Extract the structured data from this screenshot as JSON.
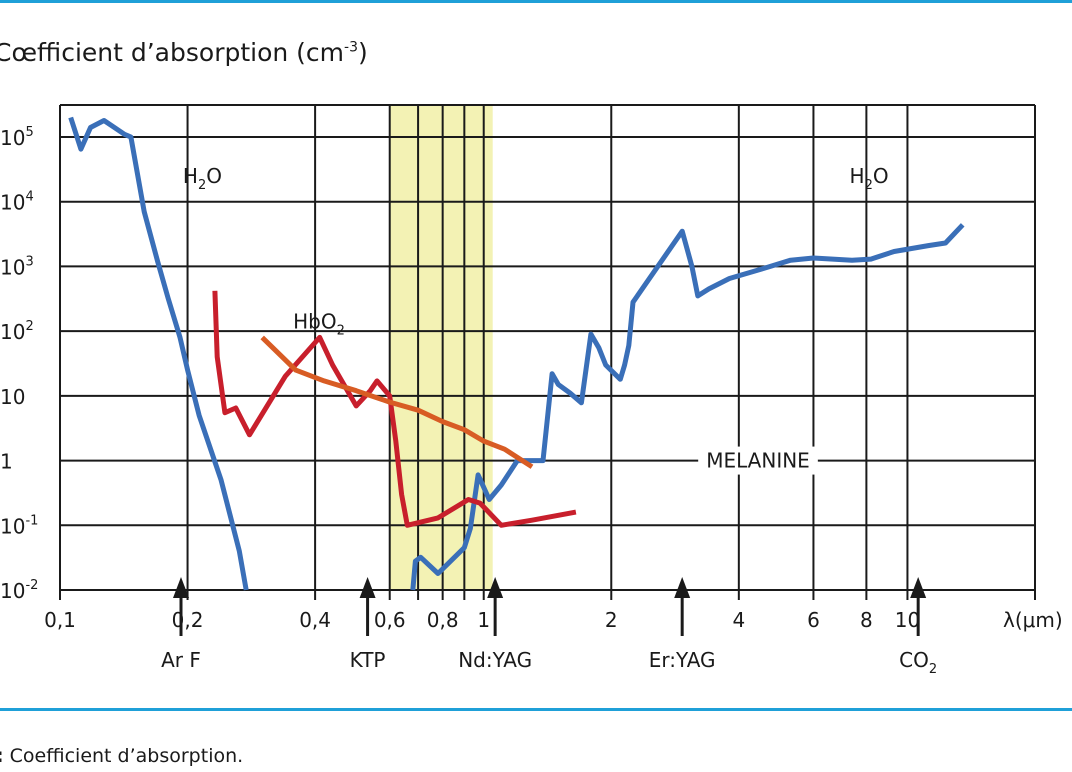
{
  "chart_data": {
    "type": "line",
    "title": "",
    "ylabel": {
      "prefix": "Cœfficient d’absorption (cm",
      "sup": "-3",
      "suffix": ")"
    },
    "xlabel": "λ(μm)",
    "x_scale": "log",
    "y_scale": "log",
    "xlim": [
      0.1,
      20
    ],
    "ylim": [
      0.01,
      200000
    ],
    "grid": true,
    "x_ticks": [
      {
        "value": 0.1,
        "label": "0,1"
      },
      {
        "value": 0.2,
        "label": "0,2"
      },
      {
        "value": 0.4,
        "label": "0,4"
      },
      {
        "value": 0.6,
        "label": "0,6"
      },
      {
        "value": 0.8,
        "label": "0,8"
      },
      {
        "value": 1,
        "label": "1"
      },
      {
        "value": 2,
        "label": "2"
      },
      {
        "value": 4,
        "label": "4"
      },
      {
        "value": 6,
        "label": "6"
      },
      {
        "value": 8,
        "label": "8"
      },
      {
        "value": 10,
        "label": "10"
      }
    ],
    "x_grid_extra": [
      0.7,
      0.9,
      20
    ],
    "y_ticks": [
      {
        "value": 100000,
        "base": "10",
        "exp": "5"
      },
      {
        "value": 10000,
        "base": "10",
        "exp": "4"
      },
      {
        "value": 1000,
        "base": "10",
        "exp": "3"
      },
      {
        "value": 100,
        "base": "10",
        "exp": "2"
      },
      {
        "value": 10,
        "base": "10",
        "exp": ""
      },
      {
        "value": 1,
        "base": "1",
        "exp": ""
      },
      {
        "value": 0.1,
        "base": "10",
        "exp": "-1"
      },
      {
        "value": 0.01,
        "base": "10",
        "exp": "-2"
      }
    ],
    "band": {
      "x0": 0.6,
      "x1": 1.05,
      "color": "#f3f2b4"
    },
    "lasers": [
      {
        "name": "Ar F",
        "sub": "",
        "x": 0.193
      },
      {
        "name": "KTP",
        "sub": "",
        "x": 0.532
      },
      {
        "name": "Nd:YAG",
        "sub": "",
        "x": 1.064
      },
      {
        "name": "Er:YAG",
        "sub": "",
        "x": 2.94
      },
      {
        "name": "CO",
        "sub": "2",
        "x": 10.6
      }
    ],
    "labels": [
      {
        "text": "H",
        "sub": "2",
        "suffix": "O",
        "x": 0.195,
        "y": 25000
      },
      {
        "text": "H",
        "sub": "2",
        "suffix": "O",
        "x": 7.3,
        "y": 25000
      },
      {
        "text": "HbO",
        "sub": "2",
        "suffix": "",
        "x": 0.355,
        "y": 140
      },
      {
        "text": "MELANINE",
        "sub": "",
        "suffix": "",
        "x": 3.35,
        "y": 1
      }
    ],
    "series": [
      {
        "key": "water",
        "color": "#3a6fb8",
        "points": [
          [
            0.106,
            200000
          ],
          [
            0.112,
            65000
          ],
          [
            0.118,
            140000
          ],
          [
            0.127,
            180000
          ],
          [
            0.142,
            110000
          ],
          [
            0.147,
            100000
          ],
          [
            0.158,
            7000
          ],
          [
            0.17,
            1200
          ],
          [
            0.18,
            320
          ],
          [
            0.192,
            80
          ],
          [
            0.2,
            25
          ],
          [
            0.213,
            5
          ],
          [
            0.24,
            0.5
          ],
          [
            0.265,
            0.04
          ],
          [
            0.275,
            0.01
          ]
        ]
      },
      {
        "key": "water_ir",
        "color": "#3a6fb8",
        "points": [
          [
            0.68,
            0.01
          ],
          [
            0.69,
            0.028
          ],
          [
            0.71,
            0.032
          ],
          [
            0.78,
            0.018
          ],
          [
            0.9,
            0.045
          ],
          [
            0.93,
            0.09
          ],
          [
            0.97,
            0.6
          ],
          [
            1.03,
            0.25
          ],
          [
            1.1,
            0.42
          ],
          [
            1.2,
            1
          ],
          [
            1.38,
            1
          ],
          [
            1.45,
            22
          ],
          [
            1.5,
            15
          ],
          [
            1.6,
            11
          ],
          [
            1.7,
            7.8
          ],
          [
            1.79,
            90
          ],
          [
            1.87,
            55
          ],
          [
            1.94,
            30
          ],
          [
            2.1,
            18
          ],
          [
            2.15,
            30
          ],
          [
            2.2,
            60
          ],
          [
            2.25,
            280
          ],
          [
            2.94,
            3500
          ],
          [
            3.1,
            1000
          ],
          [
            3.2,
            350
          ],
          [
            3.4,
            450
          ],
          [
            3.8,
            650
          ],
          [
            4.5,
            900
          ],
          [
            5.3,
            1250
          ],
          [
            6,
            1350
          ],
          [
            7.4,
            1250
          ],
          [
            8.2,
            1300
          ],
          [
            9.3,
            1700
          ],
          [
            11.2,
            2100
          ],
          [
            12.3,
            2300
          ],
          [
            13.5,
            4400
          ]
        ]
      },
      {
        "key": "hbo2",
        "color": "#c81f2c",
        "points": [
          [
            0.232,
            420
          ],
          [
            0.235,
            40
          ],
          [
            0.245,
            5.5
          ],
          [
            0.26,
            6.5
          ],
          [
            0.28,
            2.5
          ],
          [
            0.34,
            20
          ],
          [
            0.41,
            80
          ],
          [
            0.44,
            30
          ],
          [
            0.5,
            7
          ],
          [
            0.54,
            12
          ],
          [
            0.56,
            17
          ],
          [
            0.6,
            10
          ],
          [
            0.62,
            2
          ],
          [
            0.64,
            0.3
          ],
          [
            0.66,
            0.1
          ],
          [
            0.78,
            0.13
          ],
          [
            0.92,
            0.25
          ],
          [
            0.98,
            0.22
          ],
          [
            1.1,
            0.1
          ],
          [
            1.3,
            0.12
          ],
          [
            1.65,
            0.16
          ]
        ]
      },
      {
        "key": "melanine",
        "color": "#d85c24",
        "points": [
          [
            0.3,
            80
          ],
          [
            0.36,
            25
          ],
          [
            0.42,
            17
          ],
          [
            0.5,
            12
          ],
          [
            0.6,
            8
          ],
          [
            0.7,
            6
          ],
          [
            0.8,
            4
          ],
          [
            0.9,
            3
          ],
          [
            1.0,
            2
          ],
          [
            1.12,
            1.5
          ],
          [
            1.3,
            0.8
          ]
        ]
      }
    ]
  },
  "caption": {
    "prefix": ":",
    "text": " Coefficient d’absorption."
  }
}
